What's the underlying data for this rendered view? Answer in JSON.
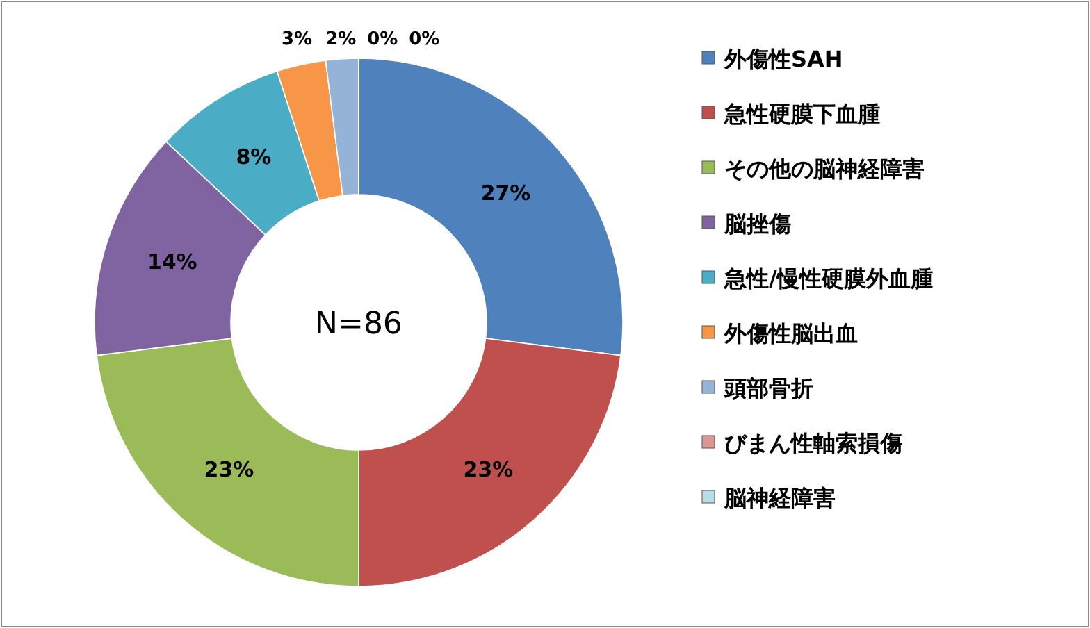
{
  "chart_data": {
    "type": "donut",
    "categories": [
      "外傷性SAH",
      "急性硬膜下血腫",
      "その他の脳神経障害",
      "脳挫傷",
      "急性/慢性硬膜外血腫",
      "外傷性脳出血",
      "頭部骨折",
      "びまん性軸索損傷",
      "脳神経障害"
    ],
    "values": [
      27,
      23,
      23,
      14,
      8,
      3,
      2,
      0,
      0
    ],
    "colors": [
      "#4f81bd",
      "#c0504d",
      "#9bbb59",
      "#8064a2",
      "#4bacc6",
      "#f79646",
      "#95b3d7",
      "#d99694",
      "#b7dee8"
    ],
    "value_labels": [
      "27%",
      "23%",
      "23%",
      "14%",
      "8%",
      "3%",
      "2%",
      "0%",
      "0%"
    ],
    "annotations": [
      "N=86"
    ],
    "legend": "right"
  }
}
